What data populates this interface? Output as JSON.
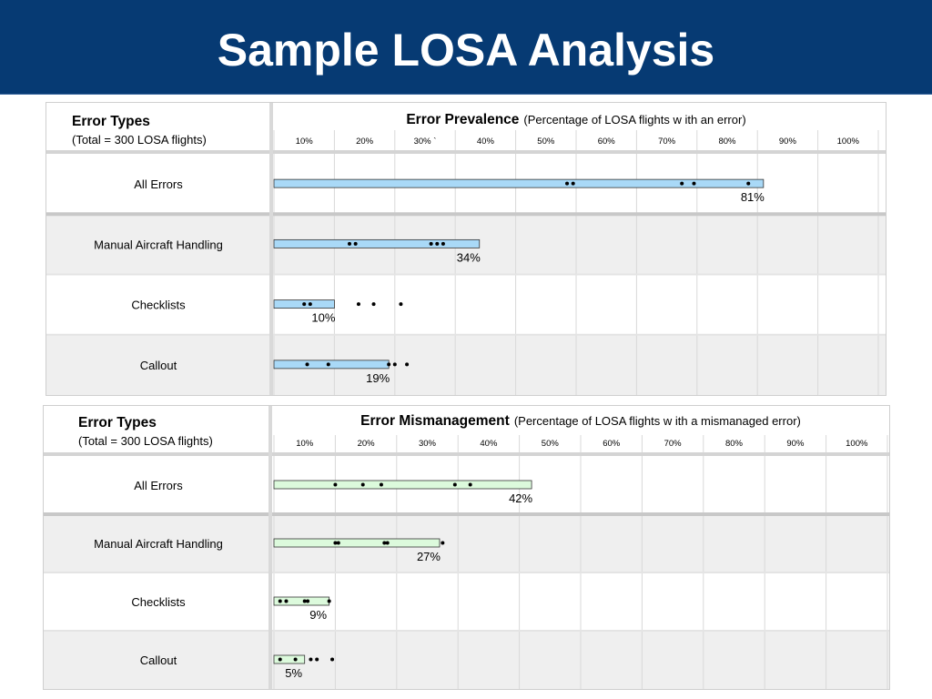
{
  "page": {
    "title": "Sample LOSA Analysis"
  },
  "chart_data": [
    {
      "type": "bar",
      "title_bold": "Error  Prevalence",
      "title_rest": "(Percentage of LOSA flights w ith an error)",
      "row_header": "Error Types",
      "row_subheader": "(Total = 300 LOSA flights)",
      "ticks": [
        "10%",
        "20%",
        "30% `",
        "40%",
        "50%",
        "60%",
        "70%",
        "80%",
        "90%",
        "100%"
      ],
      "xlim": [
        0,
        100
      ],
      "bar_color": "#a9d9f7",
      "categories": [
        "All Errors",
        "Manual Aircraft Handling",
        "Checklists",
        "Callout"
      ],
      "values": [
        81,
        34,
        10,
        19
      ],
      "value_labels": [
        "81%",
        "34%",
        "10%",
        "19%"
      ],
      "points": [
        [
          48.5,
          49.5,
          67.5,
          69.5,
          78.5
        ],
        [
          12.5,
          13.5,
          26,
          27,
          28
        ],
        [
          5,
          6,
          14,
          16.5,
          21
        ],
        [
          5.5,
          9,
          19,
          20,
          22
        ]
      ]
    },
    {
      "type": "bar",
      "title_bold": "Error Mismanagement",
      "title_rest": "(Percentage of LOSA flights w ith a mismanaged error)",
      "row_header": "Error Types",
      "row_subheader": "(Total = 300 LOSA flights)",
      "ticks": [
        "10%",
        "20%",
        "30%",
        "40%",
        "50%",
        "60%",
        "70%",
        "80%",
        "90%",
        "100%"
      ],
      "xlim": [
        0,
        100
      ],
      "bar_color": "#dcfadc",
      "categories": [
        "All Errors",
        "Manual Aircraft Handling",
        "Checklists",
        "Callout"
      ],
      "values": [
        42,
        27,
        9,
        5
      ],
      "value_labels": [
        "42%",
        "27%",
        "9%",
        "5%"
      ],
      "points": [
        [
          10,
          14.5,
          17.5,
          29.5,
          32
        ],
        [
          10,
          10.5,
          18,
          18.5,
          27.5
        ],
        [
          1,
          2,
          5,
          5.5,
          9
        ],
        [
          1,
          3.5,
          6,
          7,
          9.5
        ]
      ]
    }
  ]
}
